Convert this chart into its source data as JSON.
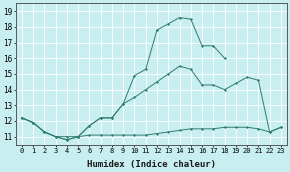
{
  "xlabel": "Humidex (Indice chaleur)",
  "bg_color": "#c8eef0",
  "grid_color": "#ffffff",
  "line_color": "#2e7d6e",
  "xlim": [
    -0.5,
    23.5
  ],
  "ylim": [
    10.5,
    19.5
  ],
  "xticks": [
    0,
    1,
    2,
    3,
    4,
    5,
    6,
    7,
    8,
    9,
    10,
    11,
    12,
    13,
    14,
    15,
    16,
    17,
    18,
    19,
    20,
    21,
    22,
    23
  ],
  "yticks": [
    11,
    12,
    13,
    14,
    15,
    16,
    17,
    18,
    19
  ],
  "line1_x": [
    0,
    1,
    2,
    3,
    4,
    5,
    6,
    7,
    8,
    9,
    10,
    11,
    12,
    13,
    14,
    15,
    16,
    17,
    18,
    19,
    20,
    21,
    22,
    23
  ],
  "line1_y": [
    12.2,
    11.9,
    11.3,
    11.0,
    11.0,
    11.0,
    11.1,
    11.1,
    11.1,
    11.1,
    11.1,
    11.1,
    11.2,
    11.3,
    11.4,
    11.5,
    11.5,
    11.5,
    11.6,
    11.6,
    11.6,
    11.5,
    11.3,
    11.6
  ],
  "line2_x": [
    0,
    1,
    2,
    3,
    4,
    5,
    6,
    7,
    8,
    9,
    10,
    11,
    12,
    13,
    14,
    15,
    16,
    17,
    18,
    19,
    20,
    21,
    22,
    23
  ],
  "line2_y": [
    12.2,
    11.9,
    11.3,
    11.0,
    10.8,
    11.0,
    11.7,
    12.2,
    12.2,
    13.1,
    13.5,
    14.0,
    14.5,
    15.0,
    15.5,
    15.3,
    14.3,
    14.3,
    14.0,
    14.4,
    14.8,
    14.6,
    11.3,
    11.6
  ],
  "line3_x": [
    0,
    1,
    2,
    3,
    4,
    5,
    6,
    7,
    8,
    9,
    10,
    11,
    12,
    13,
    14,
    15,
    16,
    17,
    18
  ],
  "line3_y": [
    12.2,
    11.9,
    11.3,
    11.0,
    10.8,
    11.0,
    11.7,
    12.2,
    12.2,
    13.1,
    14.9,
    15.3,
    17.8,
    18.2,
    18.6,
    18.5,
    16.8,
    16.8,
    16.0
  ]
}
